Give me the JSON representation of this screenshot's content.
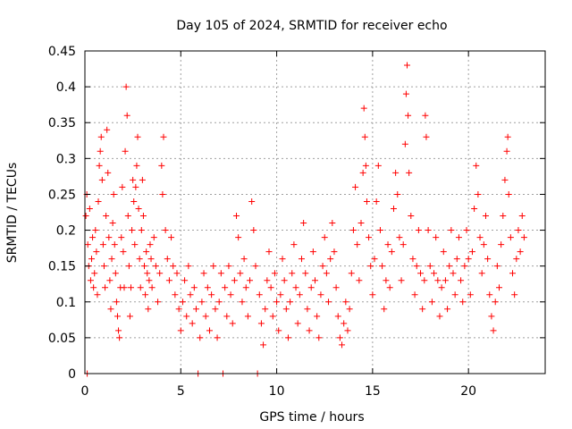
{
  "chart_data": {
    "type": "scatter",
    "title": "Day 105 of 2024, SRMTID for receiver echo",
    "xlabel": "GPS time / hours",
    "ylabel": "SRMTID / TECUs",
    "xlim": [
      0,
      24
    ],
    "ylim": [
      0,
      0.45
    ],
    "xticks": [
      0,
      5,
      10,
      15,
      20
    ],
    "xtick_labels": [
      "0",
      "5",
      "10",
      "15",
      "20"
    ],
    "yticks": [
      0,
      0.05,
      0.1,
      0.15,
      0.2,
      0.25,
      0.3,
      0.35,
      0.4,
      0.45
    ],
    "ytick_labels": [
      "0",
      "0.05",
      "0.1",
      "0.15",
      "0.2",
      "0.25",
      "0.3",
      "0.35",
      "0.4",
      "0.45"
    ],
    "grid": true,
    "marker": "+",
    "series": [
      {
        "name": "SRMTID",
        "color": "#ff0000",
        "points": [
          [
            0.05,
            0.22
          ],
          [
            0.1,
            0.25
          ],
          [
            0.12,
            0.0
          ],
          [
            0.15,
            0.18
          ],
          [
            0.2,
            0.15
          ],
          [
            0.25,
            0.23
          ],
          [
            0.3,
            0.13
          ],
          [
            0.35,
            0.16
          ],
          [
            0.4,
            0.19
          ],
          [
            0.45,
            0.12
          ],
          [
            0.5,
            0.14
          ],
          [
            0.55,
            0.2
          ],
          [
            0.6,
            0.17
          ],
          [
            0.65,
            0.11
          ],
          [
            0.7,
            0.24
          ],
          [
            0.75,
            0.29
          ],
          [
            0.8,
            0.31
          ],
          [
            0.85,
            0.33
          ],
          [
            0.9,
            0.27
          ],
          [
            0.95,
            0.18
          ],
          [
            1.0,
            0.15
          ],
          [
            1.05,
            0.12
          ],
          [
            1.1,
            0.22
          ],
          [
            1.15,
            0.34
          ],
          [
            1.2,
            0.28
          ],
          [
            1.25,
            0.19
          ],
          [
            1.3,
            0.13
          ],
          [
            1.35,
            0.09
          ],
          [
            1.4,
            0.16
          ],
          [
            1.45,
            0.21
          ],
          [
            1.5,
            0.25
          ],
          [
            1.55,
            0.18
          ],
          [
            1.6,
            0.14
          ],
          [
            1.65,
            0.1
          ],
          [
            1.7,
            0.08
          ],
          [
            1.75,
            0.06
          ],
          [
            1.8,
            0.05
          ],
          [
            1.85,
            0.12
          ],
          [
            1.9,
            0.19
          ],
          [
            1.95,
            0.26
          ],
          [
            2.0,
            0.17
          ],
          [
            2.05,
            0.12
          ],
          [
            2.1,
            0.31
          ],
          [
            2.15,
            0.4
          ],
          [
            2.2,
            0.36
          ],
          [
            2.25,
            0.22
          ],
          [
            2.3,
            0.15
          ],
          [
            2.35,
            0.08
          ],
          [
            2.4,
            0.12
          ],
          [
            2.45,
            0.2
          ],
          [
            2.5,
            0.27
          ],
          [
            2.55,
            0.24
          ],
          [
            2.6,
            0.18
          ],
          [
            2.65,
            0.26
          ],
          [
            2.7,
            0.29
          ],
          [
            2.75,
            0.33
          ],
          [
            2.8,
            0.23
          ],
          [
            2.85,
            0.16
          ],
          [
            2.9,
            0.12
          ],
          [
            2.95,
            0.2
          ],
          [
            3.0,
            0.27
          ],
          [
            3.05,
            0.22
          ],
          [
            3.1,
            0.15
          ],
          [
            3.15,
            0.11
          ],
          [
            3.2,
            0.17
          ],
          [
            3.25,
            0.14
          ],
          [
            3.3,
            0.09
          ],
          [
            3.35,
            0.13
          ],
          [
            3.4,
            0.18
          ],
          [
            3.45,
            0.16
          ],
          [
            3.5,
            0.12
          ],
          [
            3.6,
            0.19
          ],
          [
            3.7,
            0.15
          ],
          [
            3.8,
            0.1
          ],
          [
            3.9,
            0.14
          ],
          [
            4.0,
            0.29
          ],
          [
            4.05,
            0.25
          ],
          [
            4.1,
            0.33
          ],
          [
            4.2,
            0.2
          ],
          [
            4.3,
            0.16
          ],
          [
            4.4,
            0.13
          ],
          [
            4.5,
            0.19
          ],
          [
            4.6,
            0.15
          ],
          [
            4.7,
            0.11
          ],
          [
            4.8,
            0.14
          ],
          [
            4.9,
            0.09
          ],
          [
            5.0,
            0.06
          ],
          [
            5.1,
            0.1
          ],
          [
            5.2,
            0.13
          ],
          [
            5.3,
            0.08
          ],
          [
            5.4,
            0.15
          ],
          [
            5.5,
            0.11
          ],
          [
            5.6,
            0.07
          ],
          [
            5.7,
            0.12
          ],
          [
            5.8,
            0.09
          ],
          [
            5.9,
            0.0
          ],
          [
            6.0,
            0.05
          ],
          [
            6.1,
            0.1
          ],
          [
            6.2,
            0.14
          ],
          [
            6.3,
            0.08
          ],
          [
            6.4,
            0.12
          ],
          [
            6.5,
            0.06
          ],
          [
            6.6,
            0.11
          ],
          [
            6.7,
            0.15
          ],
          [
            6.8,
            0.09
          ],
          [
            6.9,
            0.05
          ],
          [
            7.0,
            0.1
          ],
          [
            7.1,
            0.14
          ],
          [
            7.2,
            0.0
          ],
          [
            7.3,
            0.12
          ],
          [
            7.4,
            0.08
          ],
          [
            7.5,
            0.15
          ],
          [
            7.6,
            0.11
          ],
          [
            7.7,
            0.07
          ],
          [
            7.8,
            0.13
          ],
          [
            7.9,
            0.22
          ],
          [
            8.0,
            0.19
          ],
          [
            8.1,
            0.14
          ],
          [
            8.2,
            0.1
          ],
          [
            8.3,
            0.16
          ],
          [
            8.4,
            0.12
          ],
          [
            8.5,
            0.08
          ],
          [
            8.6,
            0.13
          ],
          [
            8.7,
            0.24
          ],
          [
            8.8,
            0.2
          ],
          [
            8.9,
            0.15
          ],
          [
            9.0,
            0.0
          ],
          [
            9.1,
            0.11
          ],
          [
            9.2,
            0.07
          ],
          [
            9.3,
            0.04
          ],
          [
            9.4,
            0.09
          ],
          [
            9.5,
            0.13
          ],
          [
            9.6,
            0.17
          ],
          [
            9.7,
            0.12
          ],
          [
            9.8,
            0.08
          ],
          [
            9.9,
            0.14
          ],
          [
            10.0,
            0.1
          ],
          [
            10.1,
            0.06
          ],
          [
            10.2,
            0.11
          ],
          [
            10.3,
            0.16
          ],
          [
            10.4,
            0.13
          ],
          [
            10.5,
            0.09
          ],
          [
            10.6,
            0.05
          ],
          [
            10.7,
            0.1
          ],
          [
            10.8,
            0.14
          ],
          [
            10.9,
            0.18
          ],
          [
            11.0,
            0.12
          ],
          [
            11.1,
            0.07
          ],
          [
            11.2,
            0.11
          ],
          [
            11.3,
            0.16
          ],
          [
            11.4,
            0.21
          ],
          [
            11.5,
            0.14
          ],
          [
            11.6,
            0.09
          ],
          [
            11.7,
            0.06
          ],
          [
            11.8,
            0.12
          ],
          [
            11.9,
            0.17
          ],
          [
            12.0,
            0.13
          ],
          [
            12.1,
            0.08
          ],
          [
            12.2,
            0.05
          ],
          [
            12.3,
            0.11
          ],
          [
            12.4,
            0.15
          ],
          [
            12.5,
            0.19
          ],
          [
            12.6,
            0.14
          ],
          [
            12.7,
            0.1
          ],
          [
            12.8,
            0.16
          ],
          [
            12.9,
            0.21
          ],
          [
            13.0,
            0.17
          ],
          [
            13.1,
            0.12
          ],
          [
            13.2,
            0.08
          ],
          [
            13.3,
            0.05
          ],
          [
            13.4,
            0.04
          ],
          [
            13.5,
            0.07
          ],
          [
            13.6,
            0.1
          ],
          [
            13.7,
            0.06
          ],
          [
            13.8,
            0.09
          ],
          [
            13.9,
            0.14
          ],
          [
            14.0,
            0.2
          ],
          [
            14.1,
            0.26
          ],
          [
            14.2,
            0.18
          ],
          [
            14.3,
            0.13
          ],
          [
            14.4,
            0.21
          ],
          [
            14.5,
            0.28
          ],
          [
            14.55,
            0.37
          ],
          [
            14.6,
            0.33
          ],
          [
            14.65,
            0.29
          ],
          [
            14.7,
            0.24
          ],
          [
            14.8,
            0.19
          ],
          [
            14.9,
            0.15
          ],
          [
            15.0,
            0.11
          ],
          [
            15.1,
            0.16
          ],
          [
            15.2,
            0.24
          ],
          [
            15.3,
            0.29
          ],
          [
            15.4,
            0.2
          ],
          [
            15.5,
            0.15
          ],
          [
            15.6,
            0.09
          ],
          [
            15.7,
            0.13
          ],
          [
            15.8,
            0.18
          ],
          [
            15.9,
            0.12
          ],
          [
            16.0,
            0.17
          ],
          [
            16.1,
            0.23
          ],
          [
            16.2,
            0.28
          ],
          [
            16.3,
            0.25
          ],
          [
            16.4,
            0.19
          ],
          [
            16.5,
            0.13
          ],
          [
            16.6,
            0.18
          ],
          [
            16.7,
            0.32
          ],
          [
            16.75,
            0.39
          ],
          [
            16.8,
            0.43
          ],
          [
            16.85,
            0.36
          ],
          [
            16.9,
            0.28
          ],
          [
            17.0,
            0.22
          ],
          [
            17.1,
            0.16
          ],
          [
            17.2,
            0.11
          ],
          [
            17.3,
            0.15
          ],
          [
            17.4,
            0.2
          ],
          [
            17.5,
            0.14
          ],
          [
            17.6,
            0.09
          ],
          [
            17.7,
            0.13
          ],
          [
            17.75,
            0.36
          ],
          [
            17.8,
            0.33
          ],
          [
            17.9,
            0.2
          ],
          [
            18.0,
            0.15
          ],
          [
            18.1,
            0.1
          ],
          [
            18.2,
            0.14
          ],
          [
            18.3,
            0.19
          ],
          [
            18.4,
            0.13
          ],
          [
            18.5,
            0.08
          ],
          [
            18.6,
            0.12
          ],
          [
            18.7,
            0.17
          ],
          [
            18.8,
            0.13
          ],
          [
            18.9,
            0.09
          ],
          [
            19.0,
            0.15
          ],
          [
            19.1,
            0.2
          ],
          [
            19.2,
            0.14
          ],
          [
            19.3,
            0.11
          ],
          [
            19.4,
            0.16
          ],
          [
            19.5,
            0.19
          ],
          [
            19.6,
            0.13
          ],
          [
            19.7,
            0.1
          ],
          [
            19.8,
            0.15
          ],
          [
            19.9,
            0.2
          ],
          [
            20.0,
            0.16
          ],
          [
            20.1,
            0.11
          ],
          [
            20.2,
            0.17
          ],
          [
            20.3,
            0.23
          ],
          [
            20.4,
            0.29
          ],
          [
            20.5,
            0.25
          ],
          [
            20.6,
            0.19
          ],
          [
            20.7,
            0.14
          ],
          [
            20.8,
            0.18
          ],
          [
            20.9,
            0.22
          ],
          [
            21.0,
            0.16
          ],
          [
            21.1,
            0.11
          ],
          [
            21.2,
            0.08
          ],
          [
            21.3,
            0.06
          ],
          [
            21.4,
            0.1
          ],
          [
            21.5,
            0.15
          ],
          [
            21.6,
            0.12
          ],
          [
            21.7,
            0.18
          ],
          [
            21.8,
            0.22
          ],
          [
            21.9,
            0.27
          ],
          [
            22.0,
            0.31
          ],
          [
            22.05,
            0.33
          ],
          [
            22.1,
            0.25
          ],
          [
            22.2,
            0.19
          ],
          [
            22.3,
            0.14
          ],
          [
            22.4,
            0.11
          ],
          [
            22.5,
            0.16
          ],
          [
            22.6,
            0.2
          ],
          [
            22.7,
            0.17
          ],
          [
            22.8,
            0.22
          ],
          [
            22.9,
            0.19
          ]
        ]
      }
    ]
  }
}
